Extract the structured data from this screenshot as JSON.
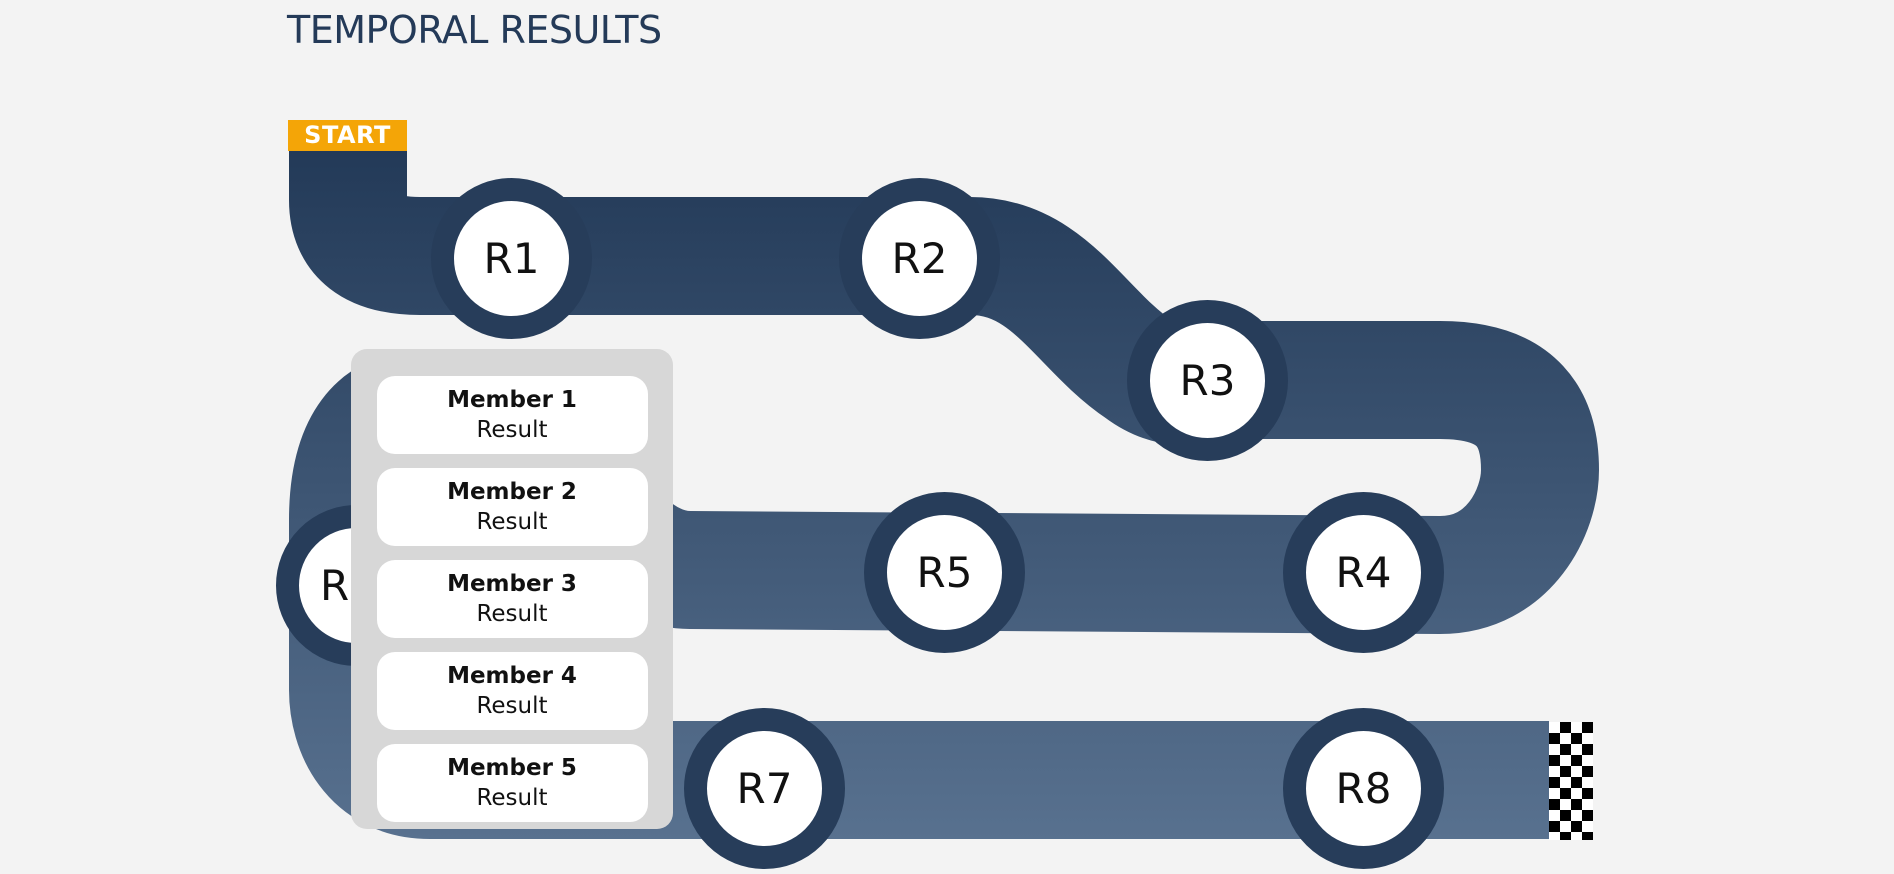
{
  "page": {
    "title": "TEMPORAL RESULTS"
  },
  "track": {
    "start_label": "START",
    "colors": {
      "track_top": "#233a58",
      "track_bottom": "#58718f",
      "node_ring": "#273d5a",
      "start_flag": "#f4a507",
      "background": "#f3f3f3",
      "panel": "#d7d7d7"
    },
    "finish_icon": "checkered-flag-icon",
    "rounds": [
      {
        "label": "R1"
      },
      {
        "label": "R2"
      },
      {
        "label": "R3"
      },
      {
        "label": "R4"
      },
      {
        "label": "R5"
      },
      {
        "label": "R"
      },
      {
        "label": "R7"
      },
      {
        "label": "R8"
      }
    ]
  },
  "panel": {
    "members": [
      {
        "name": "Member 1",
        "result": "Result"
      },
      {
        "name": "Member 2",
        "result": "Result"
      },
      {
        "name": "Member 3",
        "result": "Result"
      },
      {
        "name": "Member 4",
        "result": "Result"
      },
      {
        "name": "Member 5",
        "result": "Result"
      }
    ]
  }
}
